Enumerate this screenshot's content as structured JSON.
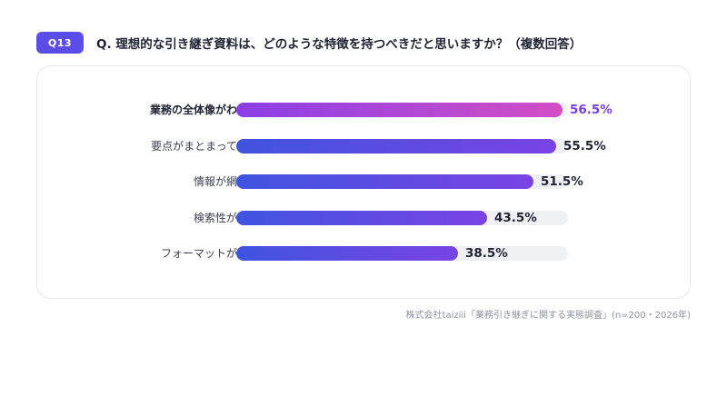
{
  "header": {
    "badge": "Q13",
    "question": "Q. 理想的な引き継ぎ資料は、どのような特徴を持つべきだと思いますか？（複数回答）"
  },
  "chart_data": {
    "type": "bar",
    "orientation": "horizontal",
    "categories": [
      "業務の全体像がわかる",
      "要点がまとまっている",
      "情報が網羅的",
      "検索性が高い",
      "フォーマットが統一"
    ],
    "values": [
      56.5,
      55.5,
      51.5,
      43.5,
      38.5
    ],
    "value_labels": [
      "56.5%",
      "55.5%",
      "51.5%",
      "43.5%",
      "38.5%"
    ],
    "xlim": [
      0,
      57.5
    ],
    "highlight_index": 0,
    "colors": {
      "bar_start": "#3f54e0",
      "bar_end": "#7a43e4",
      "highlight_start": "#8a3fe6",
      "highlight_end": "#d24fc4",
      "track": "#eef0f4",
      "highlight_text": "#7a3ee0"
    }
  },
  "source": "株式会社taiziii「業務引き継ぎに関する実態調査」(n=200・2026年)"
}
